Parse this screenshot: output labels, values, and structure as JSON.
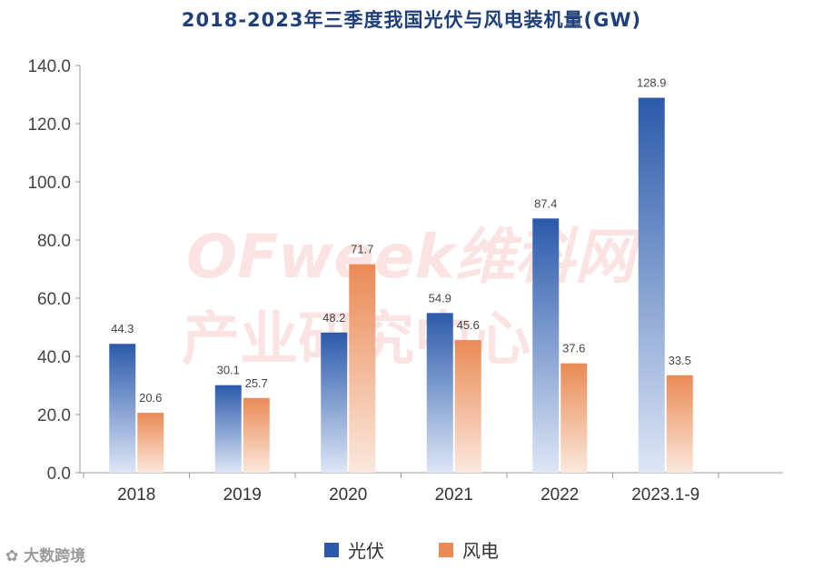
{
  "title": "2018-2023年三季度我国光伏与风电装机量(GW)",
  "watermark": {
    "brand": "OFweek维科网",
    "sub": "产业研究中心"
  },
  "source_mark": "大数跨境",
  "colors": {
    "pv": "#2b5aab",
    "wind": "#ea8a55",
    "axis": "#999999",
    "title": "#1f3f7a"
  },
  "chart_data": {
    "type": "bar",
    "title": "2018-2023年三季度我国光伏与风电装机量(GW)",
    "categories": [
      "2018",
      "2019",
      "2020",
      "2021",
      "2022",
      "2023.1-9"
    ],
    "series": [
      {
        "name": "光伏",
        "values": [
          44.3,
          30.1,
          48.2,
          54.9,
          87.4,
          128.9
        ],
        "labels": [
          "44.3",
          "30.1",
          "48.2",
          "54.9",
          "87.4",
          "128.9"
        ]
      },
      {
        "name": "风电",
        "values": [
          20.6,
          25.7,
          71.7,
          45.6,
          37.6,
          33.5
        ],
        "labels": [
          "20.6",
          "25.7",
          "71.7",
          "45.6",
          "37.6",
          "33.5"
        ]
      }
    ],
    "ylim": [
      0,
      140
    ],
    "yticks": [
      "0.0",
      "20.0",
      "40.0",
      "60.0",
      "80.0",
      "100.0",
      "120.0",
      "140.0"
    ],
    "xlabel": "",
    "ylabel": "",
    "legend_position": "bottom-center"
  }
}
